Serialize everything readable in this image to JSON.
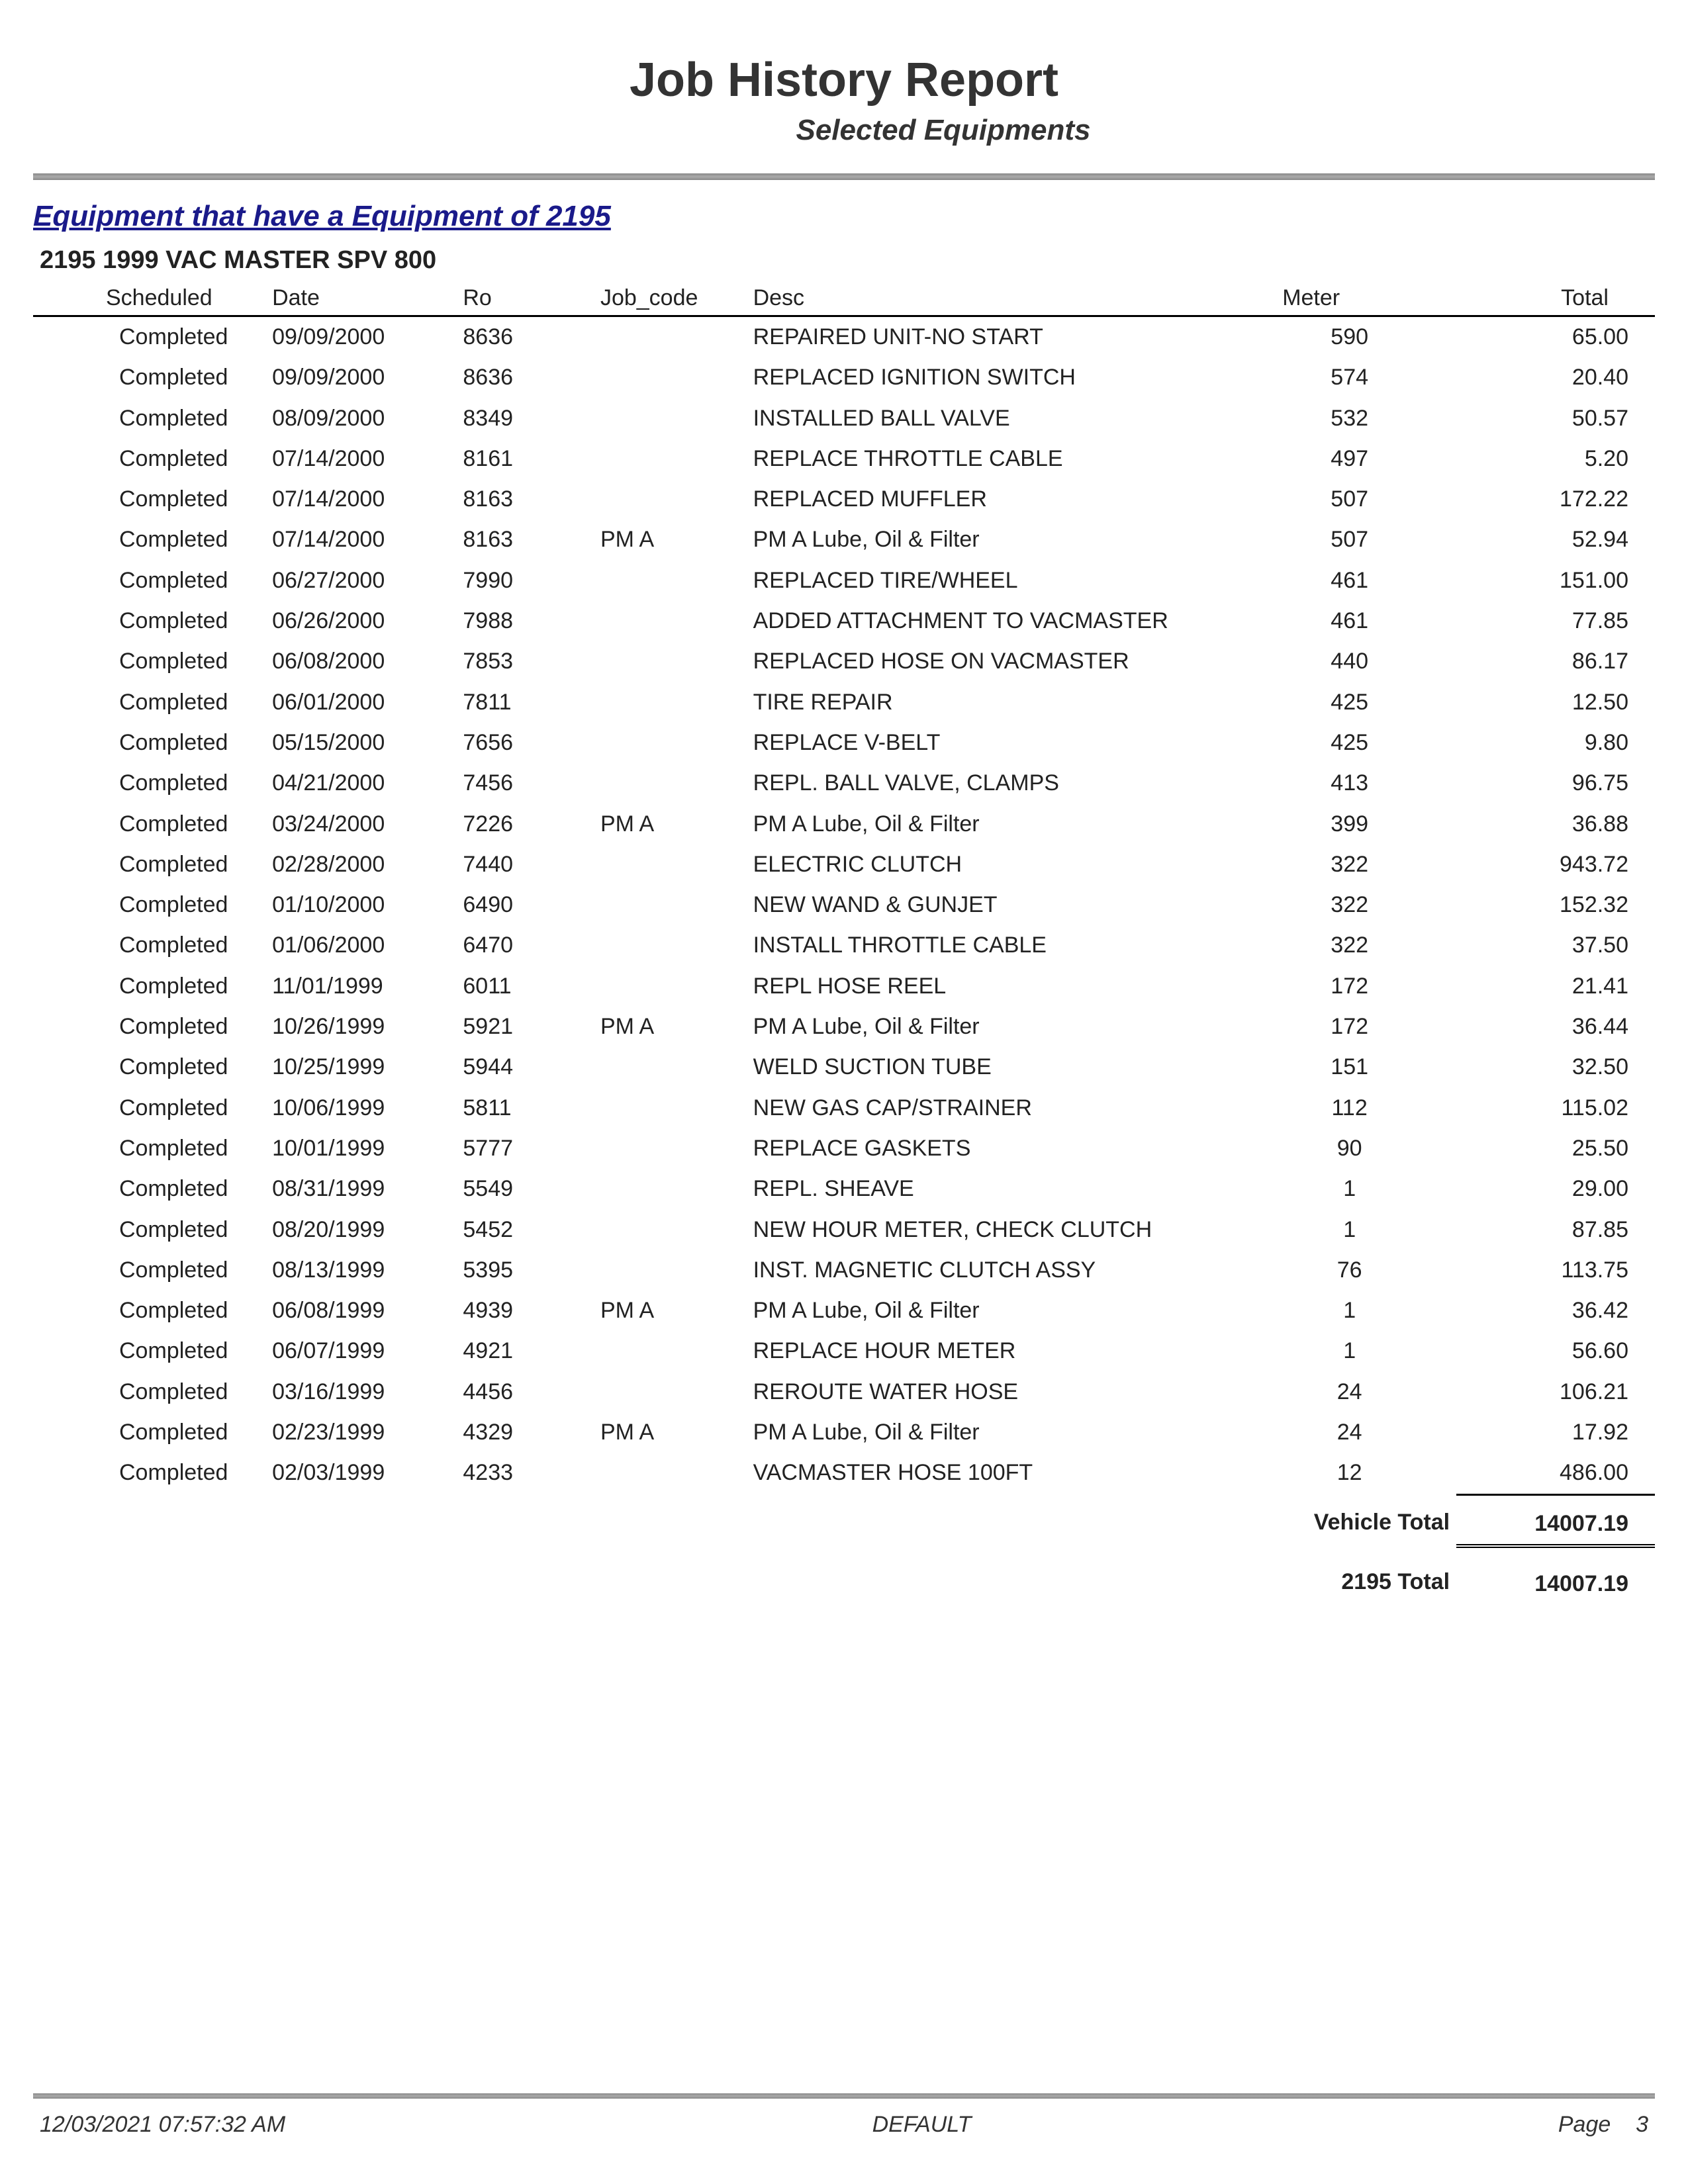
{
  "report": {
    "title": "Job History Report",
    "subtitle": "Selected Equipments",
    "section_header": "Equipment that have a Equipment of 2195",
    "equipment_title": "2195 1999 VAC MASTER SPV 800"
  },
  "columns": {
    "scheduled": "Scheduled",
    "date": "Date",
    "ro": "Ro",
    "job_code": "Job_code",
    "desc": "Desc",
    "meter": "Meter",
    "total": "Total"
  },
  "rows": [
    {
      "scheduled": "Completed",
      "date": "09/09/2000",
      "ro": "8636",
      "job_code": "",
      "desc": "REPAIRED UNIT-NO START",
      "meter": "590",
      "total": "65.00"
    },
    {
      "scheduled": "Completed",
      "date": "09/09/2000",
      "ro": "8636",
      "job_code": "",
      "desc": "REPLACED IGNITION SWITCH",
      "meter": "574",
      "total": "20.40"
    },
    {
      "scheduled": "Completed",
      "date": "08/09/2000",
      "ro": "8349",
      "job_code": "",
      "desc": "INSTALLED BALL VALVE",
      "meter": "532",
      "total": "50.57"
    },
    {
      "scheduled": "Completed",
      "date": "07/14/2000",
      "ro": "8161",
      "job_code": "",
      "desc": "REPLACE THROTTLE CABLE",
      "meter": "497",
      "total": "5.20"
    },
    {
      "scheduled": "Completed",
      "date": "07/14/2000",
      "ro": "8163",
      "job_code": "",
      "desc": "REPLACED MUFFLER",
      "meter": "507",
      "total": "172.22"
    },
    {
      "scheduled": "Completed",
      "date": "07/14/2000",
      "ro": "8163",
      "job_code": "PM A",
      "desc": "PM A  Lube, Oil & Filter",
      "meter": "507",
      "total": "52.94"
    },
    {
      "scheduled": "Completed",
      "date": "06/27/2000",
      "ro": "7990",
      "job_code": "",
      "desc": "REPLACED TIRE/WHEEL",
      "meter": "461",
      "total": "151.00"
    },
    {
      "scheduled": "Completed",
      "date": "06/26/2000",
      "ro": "7988",
      "job_code": "",
      "desc": "ADDED ATTACHMENT TO VACMASTER",
      "meter": "461",
      "total": "77.85"
    },
    {
      "scheduled": "Completed",
      "date": "06/08/2000",
      "ro": "7853",
      "job_code": "",
      "desc": "REPLACED HOSE ON VACMASTER",
      "meter": "440",
      "total": "86.17"
    },
    {
      "scheduled": "Completed",
      "date": "06/01/2000",
      "ro": "7811",
      "job_code": "",
      "desc": "TIRE REPAIR",
      "meter": "425",
      "total": "12.50"
    },
    {
      "scheduled": "Completed",
      "date": "05/15/2000",
      "ro": "7656",
      "job_code": "",
      "desc": "REPLACE V-BELT",
      "meter": "425",
      "total": "9.80"
    },
    {
      "scheduled": "Completed",
      "date": "04/21/2000",
      "ro": "7456",
      "job_code": "",
      "desc": "REPL. BALL VALVE, CLAMPS",
      "meter": "413",
      "total": "96.75"
    },
    {
      "scheduled": "Completed",
      "date": "03/24/2000",
      "ro": "7226",
      "job_code": "PM A",
      "desc": "PM A  Lube, Oil & Filter",
      "meter": "399",
      "total": "36.88"
    },
    {
      "scheduled": "Completed",
      "date": "02/28/2000",
      "ro": "7440",
      "job_code": "",
      "desc": "ELECTRIC CLUTCH",
      "meter": "322",
      "total": "943.72"
    },
    {
      "scheduled": "Completed",
      "date": "01/10/2000",
      "ro": "6490",
      "job_code": "",
      "desc": "NEW WAND & GUNJET",
      "meter": "322",
      "total": "152.32"
    },
    {
      "scheduled": "Completed",
      "date": "01/06/2000",
      "ro": "6470",
      "job_code": "",
      "desc": "INSTALL THROTTLE CABLE",
      "meter": "322",
      "total": "37.50"
    },
    {
      "scheduled": "Completed",
      "date": "11/01/1999",
      "ro": "6011",
      "job_code": "",
      "desc": "REPL HOSE REEL",
      "meter": "172",
      "total": "21.41"
    },
    {
      "scheduled": "Completed",
      "date": "10/26/1999",
      "ro": "5921",
      "job_code": "PM A",
      "desc": "PM A  Lube, Oil & Filter",
      "meter": "172",
      "total": "36.44"
    },
    {
      "scheduled": "Completed",
      "date": "10/25/1999",
      "ro": "5944",
      "job_code": "",
      "desc": "WELD SUCTION TUBE",
      "meter": "151",
      "total": "32.50"
    },
    {
      "scheduled": "Completed",
      "date": "10/06/1999",
      "ro": "5811",
      "job_code": "",
      "desc": "NEW GAS CAP/STRAINER",
      "meter": "112",
      "total": "115.02"
    },
    {
      "scheduled": "Completed",
      "date": "10/01/1999",
      "ro": "5777",
      "job_code": "",
      "desc": "REPLACE GASKETS",
      "meter": "90",
      "total": "25.50"
    },
    {
      "scheduled": "Completed",
      "date": "08/31/1999",
      "ro": "5549",
      "job_code": "",
      "desc": "REPL. SHEAVE",
      "meter": "1",
      "total": "29.00"
    },
    {
      "scheduled": "Completed",
      "date": "08/20/1999",
      "ro": "5452",
      "job_code": "",
      "desc": "NEW HOUR METER, CHECK CLUTCH",
      "meter": "1",
      "total": "87.85"
    },
    {
      "scheduled": "Completed",
      "date": "08/13/1999",
      "ro": "5395",
      "job_code": "",
      "desc": "INST. MAGNETIC CLUTCH ASSY",
      "meter": "76",
      "total": "113.75"
    },
    {
      "scheduled": "Completed",
      "date": "06/08/1999",
      "ro": "4939",
      "job_code": "PM A",
      "desc": "PM A  Lube, Oil & Filter",
      "meter": "1",
      "total": "36.42"
    },
    {
      "scheduled": "Completed",
      "date": "06/07/1999",
      "ro": "4921",
      "job_code": "",
      "desc": "REPLACE HOUR METER",
      "meter": "1",
      "total": "56.60"
    },
    {
      "scheduled": "Completed",
      "date": "03/16/1999",
      "ro": "4456",
      "job_code": "",
      "desc": "REROUTE WATER HOSE",
      "meter": "24",
      "total": "106.21"
    },
    {
      "scheduled": "Completed",
      "date": "02/23/1999",
      "ro": "4329",
      "job_code": "PM A",
      "desc": "PM A  Lube, Oil & Filter",
      "meter": "24",
      "total": "17.92"
    },
    {
      "scheduled": "Completed",
      "date": "02/03/1999",
      "ro": "4233",
      "job_code": "",
      "desc": "VACMASTER HOSE 100FT",
      "meter": "12",
      "total": "486.00"
    }
  ],
  "totals": {
    "vehicle_label": "Vehicle Total",
    "vehicle_value": "14007.19",
    "group_label": "2195 Total",
    "group_value": "14007.19"
  },
  "footer": {
    "timestamp": "12/03/2021 07:57:32 AM",
    "center": "DEFAULT",
    "page_label": "Page",
    "page_num": "3"
  }
}
